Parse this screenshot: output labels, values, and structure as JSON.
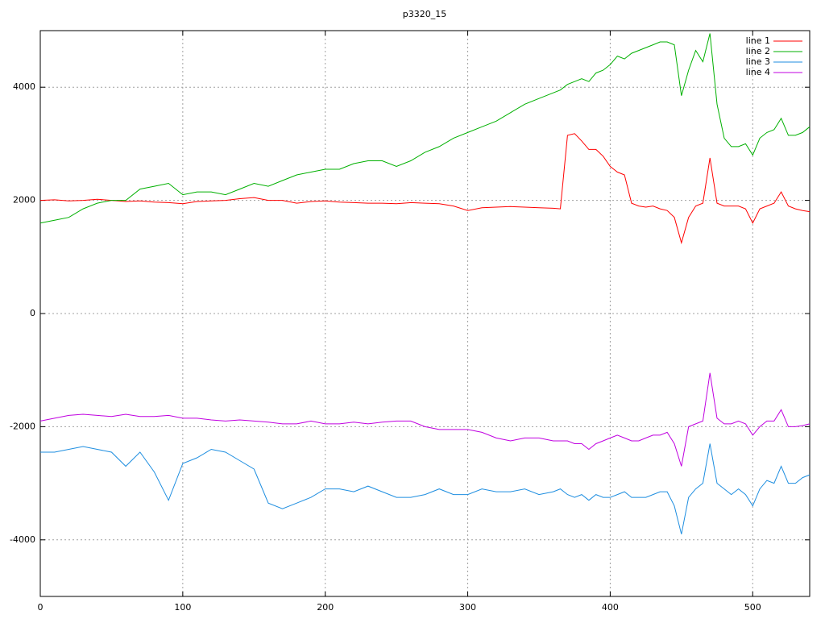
{
  "chart_data": {
    "type": "line",
    "title": "p3320_15",
    "x": [
      0,
      10,
      20,
      30,
      40,
      50,
      60,
      70,
      80,
      90,
      100,
      110,
      120,
      130,
      140,
      150,
      160,
      170,
      180,
      190,
      200,
      210,
      220,
      230,
      240,
      250,
      260,
      270,
      280,
      290,
      300,
      310,
      320,
      330,
      340,
      350,
      360,
      365,
      370,
      375,
      380,
      385,
      390,
      395,
      400,
      405,
      410,
      415,
      420,
      425,
      430,
      435,
      440,
      445,
      450,
      455,
      460,
      465,
      470,
      475,
      480,
      485,
      490,
      495,
      500,
      505,
      510,
      515,
      520,
      525,
      530,
      535,
      540
    ],
    "series": [
      {
        "name": "line 1",
        "color": "#ff0000",
        "values": [
          2000,
          2010,
          1990,
          2000,
          2020,
          2000,
          1980,
          1990,
          1970,
          1960,
          1940,
          1980,
          1990,
          2000,
          2030,
          2050,
          2000,
          2000,
          1950,
          1980,
          1990,
          1970,
          1960,
          1950,
          1950,
          1940,
          1960,
          1950,
          1940,
          1900,
          1820,
          1870,
          1880,
          1890,
          1880,
          1870,
          1860,
          1850,
          3150,
          3180,
          3050,
          2900,
          2900,
          2780,
          2600,
          2500,
          2450,
          1950,
          1900,
          1880,
          1900,
          1850,
          1820,
          1700,
          1250,
          1700,
          1900,
          1950,
          2750,
          1950,
          1900,
          1900,
          1900,
          1850,
          1600,
          1850,
          1900,
          1950,
          2150,
          1900,
          1850,
          1820,
          1800
        ]
      },
      {
        "name": "line 2",
        "color": "#00b000",
        "values": [
          1600,
          1650,
          1700,
          1850,
          1950,
          2000,
          2000,
          2200,
          2250,
          2300,
          2100,
          2150,
          2150,
          2100,
          2200,
          2300,
          2250,
          2350,
          2450,
          2500,
          2550,
          2550,
          2650,
          2700,
          2700,
          2600,
          2700,
          2850,
          2950,
          3100,
          3200,
          3300,
          3400,
          3550,
          3700,
          3800,
          3900,
          3950,
          4050,
          4100,
          4150,
          4100,
          4250,
          4300,
          4400,
          4550,
          4500,
          4600,
          4650,
          4700,
          4750,
          4800,
          4800,
          4750,
          3850,
          4300,
          4650,
          4450,
          4950,
          3700,
          3100,
          2950,
          2950,
          3000,
          2800,
          3100,
          3200,
          3250,
          3450,
          3150,
          3150,
          3200,
          3300
        ]
      },
      {
        "name": "line 3",
        "color": "#1e8ee0",
        "values": [
          -2450,
          -2450,
          -2400,
          -2350,
          -2400,
          -2450,
          -2700,
          -2450,
          -2800,
          -3300,
          -2650,
          -2550,
          -2400,
          -2450,
          -2600,
          -2750,
          -3350,
          -3450,
          -3350,
          -3250,
          -3100,
          -3100,
          -3150,
          -3050,
          -3150,
          -3250,
          -3250,
          -3200,
          -3100,
          -3200,
          -3200,
          -3100,
          -3150,
          -3150,
          -3100,
          -3200,
          -3150,
          -3100,
          -3200,
          -3250,
          -3200,
          -3300,
          -3200,
          -3250,
          -3250,
          -3200,
          -3150,
          -3250,
          -3250,
          -3250,
          -3200,
          -3150,
          -3150,
          -3400,
          -3900,
          -3250,
          -3100,
          -3000,
          -2300,
          -3000,
          -3100,
          -3200,
          -3100,
          -3200,
          -3400,
          -3100,
          -2950,
          -3000,
          -2700,
          -3000,
          -3000,
          -2900,
          -2850
        ]
      },
      {
        "name": "line 4",
        "color": "#c000e0",
        "values": [
          -1900,
          -1850,
          -1800,
          -1780,
          -1800,
          -1820,
          -1780,
          -1820,
          -1820,
          -1800,
          -1850,
          -1850,
          -1880,
          -1900,
          -1880,
          -1900,
          -1920,
          -1950,
          -1950,
          -1900,
          -1950,
          -1950,
          -1920,
          -1950,
          -1920,
          -1900,
          -1900,
          -2000,
          -2050,
          -2050,
          -2050,
          -2100,
          -2200,
          -2250,
          -2200,
          -2200,
          -2250,
          -2250,
          -2250,
          -2300,
          -2300,
          -2400,
          -2300,
          -2250,
          -2200,
          -2150,
          -2200,
          -2250,
          -2250,
          -2200,
          -2150,
          -2150,
          -2100,
          -2300,
          -2700,
          -2000,
          -1950,
          -1900,
          -1050,
          -1850,
          -1950,
          -1950,
          -1900,
          -1950,
          -2150,
          -2000,
          -1900,
          -1900,
          -1700,
          -2000,
          -2000,
          -1980,
          -1950
        ]
      }
    ],
    "xlim": [
      0,
      540
    ],
    "ylim": [
      -5000,
      5000
    ],
    "xticks": [
      0,
      100,
      200,
      300,
      400,
      500
    ],
    "yticks": [
      -4000,
      -2000,
      0,
      2000,
      4000
    ],
    "grid": true,
    "legend": "top-right"
  }
}
